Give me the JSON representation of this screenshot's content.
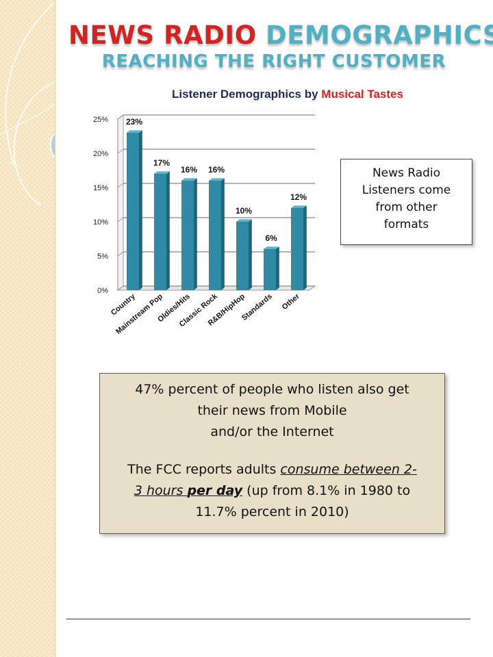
{
  "title": {
    "line1_word1": "NEWS RADIO",
    "line1_word2": "DEMOGRAPHICS",
    "line2": "REACHING THE RIGHT CUSTOMER"
  },
  "subtitle": {
    "part1": "Listener Demographics by",
    "part2": "Musical Tastes"
  },
  "callout_top": {
    "lines": [
      "News Radio",
      "Listeners come",
      "from other",
      "formats"
    ]
  },
  "callout_bottom": {
    "para1_line1": "47% percent of people who listen also get",
    "para1_line2": "their news from Mobile",
    "para1_line3": "and/or the Internet",
    "para2_a": "The FCC reports adults ",
    "para2_b": "consume between 2-",
    "para2_c": "3 hours ",
    "para2_d": "per day",
    "para2_e": " (up from 8.1% in 1980 to",
    "para2_f": "11.7% percent in 2010)"
  },
  "colors": {
    "title_red": "#d42320",
    "title_teal": "#4fb1c3",
    "bar": "#2f8aa4",
    "sidebar": "#f5e2b8"
  },
  "chart_data": {
    "type": "bar",
    "categories": [
      "Country",
      "Mainstream Pop",
      "Oldies/Hits",
      "Classic Rock",
      "R&B/HipHop",
      "Standards",
      "Other"
    ],
    "values": [
      23,
      17,
      16,
      16,
      10,
      6,
      12
    ],
    "data_labels": [
      "23%",
      "17%",
      "16%",
      "16%",
      "10%",
      "6%",
      "12%"
    ],
    "yticks": [
      0,
      5,
      10,
      15,
      20,
      25
    ],
    "ytick_labels": [
      "0%",
      "5%",
      "10%",
      "15%",
      "20%",
      "25%"
    ],
    "ylim": [
      0,
      25
    ],
    "grid": true,
    "style": "3d-bar"
  }
}
